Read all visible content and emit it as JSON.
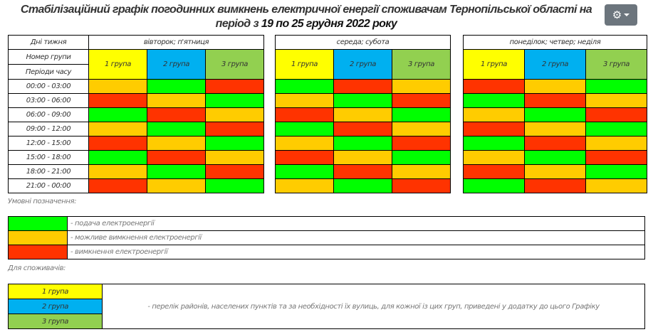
{
  "title": {
    "line1": "Стабілізаційний графік погодинних вимкнень електричної енергії споживачам Тернопільської області на",
    "line2_prefix": "період з ",
    "line2_bold": "19 по 25 грудня 2022 року"
  },
  "settings_button": {
    "icon": "gear-icon"
  },
  "table": {
    "label_days": "Дні тижня",
    "label_group": "Номер групи",
    "label_periods": "Періоди часу",
    "blocks": [
      {
        "days": "вівторок; п'ятниця",
        "groups": [
          "1 група",
          "2 група",
          "3 група"
        ],
        "rows": [
          [
            "Y",
            "G",
            "R"
          ],
          [
            "R",
            "Y",
            "G"
          ],
          [
            "G",
            "R",
            "Y"
          ],
          [
            "Y",
            "G",
            "R"
          ],
          [
            "R",
            "Y",
            "G"
          ],
          [
            "G",
            "R",
            "Y"
          ],
          [
            "Y",
            "G",
            "R"
          ],
          [
            "R",
            "Y",
            "G"
          ]
        ]
      },
      {
        "days": "середа; субота",
        "groups": [
          "1 група",
          "2 група",
          "3 група"
        ],
        "rows": [
          [
            "G",
            "R",
            "Y"
          ],
          [
            "Y",
            "G",
            "R"
          ],
          [
            "R",
            "Y",
            "G"
          ],
          [
            "G",
            "R",
            "Y"
          ],
          [
            "Y",
            "G",
            "R"
          ],
          [
            "R",
            "Y",
            "G"
          ],
          [
            "G",
            "R",
            "Y"
          ],
          [
            "Y",
            "G",
            "R"
          ]
        ]
      },
      {
        "days": "понеділок; четвер; неділя",
        "groups": [
          "1 група",
          "2 група",
          "3 група"
        ],
        "rows": [
          [
            "R",
            "Y",
            "G"
          ],
          [
            "G",
            "R",
            "Y"
          ],
          [
            "Y",
            "G",
            "R"
          ],
          [
            "R",
            "Y",
            "G"
          ],
          [
            "G",
            "R",
            "Y"
          ],
          [
            "Y",
            "G",
            "R"
          ],
          [
            "R",
            "Y",
            "G"
          ],
          [
            "G",
            "R",
            "Y"
          ]
        ]
      }
    ],
    "periods": [
      "00:00 - 03:00",
      "03:00 - 06:00",
      "06:00 - 09:00",
      "09:00 - 12:00",
      "12:00 - 15:00",
      "15:00 - 18:00",
      "18:00 - 21:00",
      "21:00 - 00:00"
    ]
  },
  "colors": {
    "G": "#00ff00",
    "Y": "#ffcc00",
    "R": "#ff3300",
    "group1": "#ffff00",
    "group2": "#00b0f0",
    "group3": "#92d050"
  },
  "legend": {
    "heading": "Умовні позначення:",
    "items": [
      {
        "code": "G",
        "text": "- подача електроенергії"
      },
      {
        "code": "Y",
        "text": "- можливе вимкнення електроенергії"
      },
      {
        "code": "R",
        "text": "- вимкнення електроенергії"
      }
    ]
  },
  "consumers": {
    "heading": "Для споживачів:",
    "groups": [
      "1 група",
      "2 група",
      "3 група"
    ],
    "text": "- перелік районів, населених пунктів та за необхідності їх вулиць, для кожної із цих груп, приведені у додатку до цього Графіку"
  }
}
